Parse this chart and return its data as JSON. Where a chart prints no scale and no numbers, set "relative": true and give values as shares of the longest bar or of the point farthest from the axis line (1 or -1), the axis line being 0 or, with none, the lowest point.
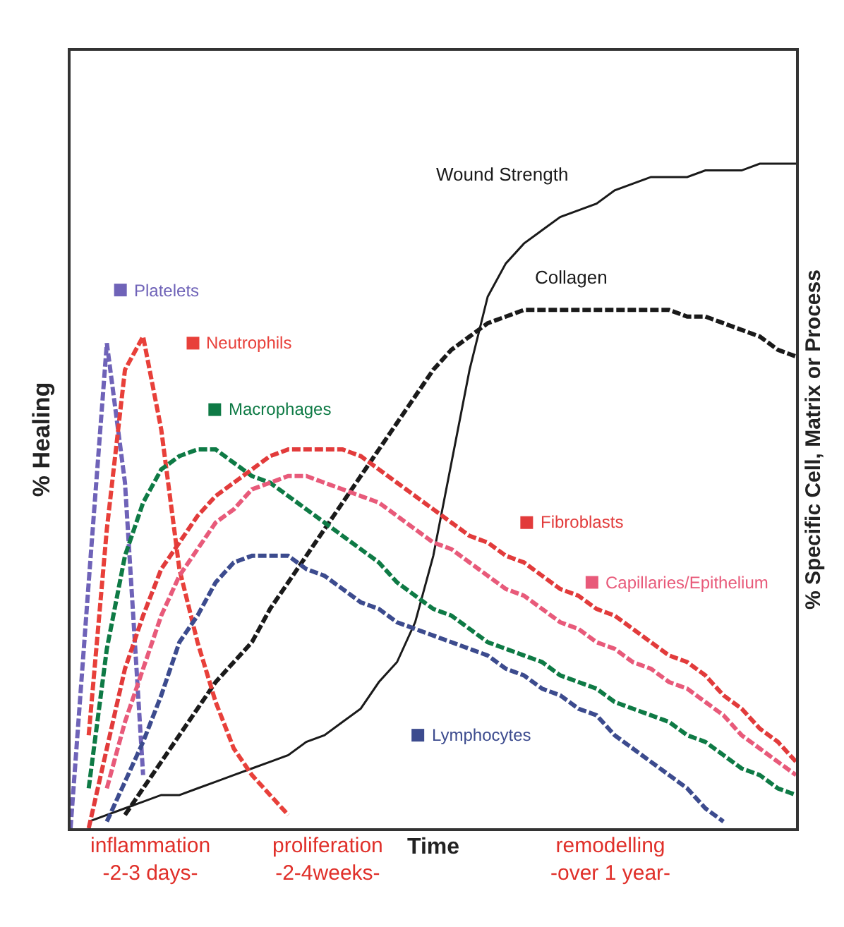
{
  "chart_data": {
    "type": "line",
    "relative": true,
    "xlabel": "Time",
    "ylabel": "% Healing",
    "y2label": "% Specific Cell, Matrix or Process",
    "tick_labels": false,
    "legend": "bottom right",
    "marker": "none",
    "categories": [
      null,
      null,
      null,
      null,
      null,
      null,
      null,
      null,
      null,
      null,
      null,
      null,
      null,
      null,
      null,
      null,
      null,
      null,
      null,
      null,
      null,
      null,
      null,
      null,
      null,
      null,
      null,
      null,
      null,
      null,
      null,
      null,
      null,
      null,
      null,
      null,
      null,
      null,
      null,
      null,
      null
    ],
    "annotations": [
      "inflammation\n-2-3 days-",
      "proliferation\n-2-4weeks-",
      "remodelling\n-over 1 year-"
    ],
    "series": [
      {
        "name": "Wound Strength",
        "color": "#1a1a1a",
        "line_style": "solid",
        "values": [
          null,
          0.01,
          0.02,
          0.03,
          0.04,
          0.05,
          0.05,
          0.06,
          0.07,
          0.08,
          0.09,
          0.1,
          0.11,
          0.13,
          0.14,
          0.16,
          0.18,
          0.22,
          0.25,
          0.31,
          0.41,
          0.55,
          0.69,
          0.8,
          0.85,
          0.88,
          0.9,
          0.92,
          0.93,
          0.94,
          0.96,
          0.97,
          0.98,
          0.98,
          0.98,
          0.99,
          0.99,
          0.99,
          1,
          1,
          1
        ]
      },
      {
        "name": "Collagen",
        "color": "#1a1a1a",
        "line_style": "dashed",
        "values": [
          null,
          null,
          null,
          0.02,
          0.06,
          0.1,
          0.14,
          0.18,
          0.22,
          0.25,
          0.28,
          0.33,
          0.37,
          0.41,
          0.45,
          0.49,
          0.53,
          0.57,
          0.61,
          0.65,
          0.69,
          0.72,
          0.74,
          0.76,
          0.77,
          0.78,
          0.78,
          0.78,
          0.78,
          0.78,
          0.78,
          0.78,
          0.78,
          0.78,
          0.77,
          0.77,
          0.76,
          0.75,
          0.74,
          0.72,
          0.71
        ]
      },
      {
        "name": "Platelets",
        "color": "#6f63b8",
        "line_style": "dashed",
        "values": [
          0,
          0.37,
          0.73,
          0.52,
          0.08,
          null,
          null,
          null,
          null,
          null,
          null,
          null,
          null,
          null,
          null,
          null,
          null,
          null,
          null,
          null,
          null,
          null,
          null,
          null,
          null,
          null,
          null,
          null,
          null,
          null,
          null,
          null,
          null,
          null,
          null,
          null,
          null,
          null,
          null,
          null,
          null
        ]
      },
      {
        "name": "Neutrophils",
        "color": "#e8403a",
        "line_style": "dashed",
        "values": [
          null,
          0.14,
          0.45,
          0.69,
          0.74,
          0.6,
          0.39,
          0.28,
          0.19,
          0.12,
          0.08,
          0.05,
          0.02,
          null,
          null,
          null,
          null,
          null,
          null,
          null,
          null,
          null,
          null,
          null,
          null,
          null,
          null,
          null,
          null,
          null,
          null,
          null,
          null,
          null,
          null,
          null,
          null,
          null,
          null,
          null,
          null
        ]
      },
      {
        "name": "Macrophages",
        "color": "#0e7a45",
        "line_style": "dashed",
        "values": [
          null,
          0.06,
          0.27,
          0.41,
          0.49,
          0.54,
          0.56,
          0.57,
          0.57,
          0.55,
          0.53,
          0.52,
          0.5,
          0.48,
          0.46,
          0.44,
          0.42,
          0.4,
          0.37,
          0.35,
          0.33,
          0.32,
          0.3,
          0.28,
          0.27,
          0.26,
          0.25,
          0.23,
          0.22,
          0.21,
          0.19,
          0.18,
          0.17,
          0.16,
          0.14,
          0.13,
          0.11,
          0.09,
          0.08,
          0.06,
          0.05
        ]
      },
      {
        "name": "Fibroblasts",
        "color": "#e23b3b",
        "line_style": "dashed",
        "values": [
          null,
          0,
          0.12,
          0.24,
          0.32,
          0.39,
          0.43,
          0.47,
          0.5,
          0.52,
          0.54,
          0.56,
          0.57,
          0.57,
          0.57,
          0.57,
          0.56,
          0.54,
          0.52,
          0.5,
          0.48,
          0.46,
          0.44,
          0.43,
          0.41,
          0.4,
          0.38,
          0.36,
          0.35,
          0.33,
          0.32,
          0.3,
          0.28,
          0.26,
          0.25,
          0.23,
          0.2,
          0.18,
          0.15,
          0.13,
          0.1
        ]
      },
      {
        "name": "Capillaries/Epithelium",
        "color": "#e85a7a",
        "line_style": "dashed",
        "values": [
          null,
          null,
          0.06,
          0.16,
          0.24,
          0.32,
          0.38,
          0.42,
          0.46,
          0.48,
          0.51,
          0.52,
          0.53,
          0.53,
          0.52,
          0.51,
          0.5,
          0.49,
          0.47,
          0.45,
          0.43,
          0.42,
          0.4,
          0.38,
          0.36,
          0.35,
          0.33,
          0.31,
          0.3,
          0.28,
          0.27,
          0.25,
          0.24,
          0.22,
          0.21,
          0.19,
          0.17,
          0.14,
          0.12,
          0.1,
          0.08
        ]
      },
      {
        "name": "Lymphocytes",
        "color": "#3c4b8e",
        "line_style": "dashed",
        "values": [
          null,
          null,
          0.01,
          0.07,
          0.13,
          0.2,
          0.28,
          0.32,
          0.37,
          0.4,
          0.41,
          0.41,
          0.41,
          0.39,
          0.38,
          0.36,
          0.34,
          0.33,
          0.31,
          0.3,
          0.29,
          0.28,
          0.27,
          0.26,
          0.24,
          0.23,
          0.21,
          0.2,
          0.18,
          0.17,
          0.14,
          0.12,
          0.1,
          0.08,
          0.06,
          0.03,
          0.01,
          null,
          null,
          null,
          null
        ]
      }
    ]
  }
}
